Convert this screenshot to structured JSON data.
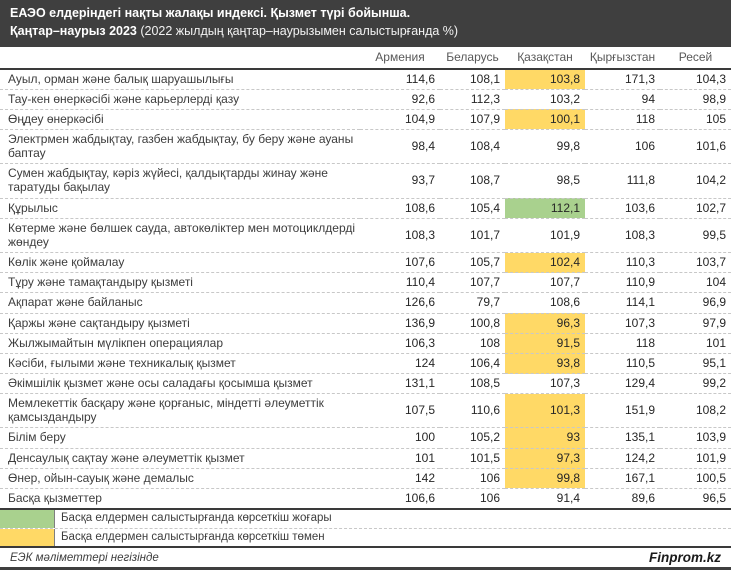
{
  "header": {
    "title_line1": "ЕАЭО елдеріндегі нақты жалақы индексі. Қызмет түрі бойынша.",
    "period_bold": "Қаңтар–наурыз 2023",
    "period_note": " (2022 жылдың қаңтар–наурызымен салыстырғанда %)"
  },
  "chart_data": {
    "type": "table",
    "columns": [
      "Армения",
      "Беларусь",
      "Қазақстан",
      "Қырғызстан",
      "Ресей"
    ],
    "highlight_column_index": 2,
    "rows": [
      {
        "label": "Ауыл, орман және балық шаруашылығы",
        "values": [
          "114,6",
          "108,1",
          "103,8",
          "171,3",
          "104,3"
        ],
        "highlight": "low"
      },
      {
        "label": "Тау-кен өнеркәсібі және карьерлерді қазу",
        "values": [
          "92,6",
          "112,3",
          "103,2",
          "94",
          "98,9"
        ],
        "highlight": null
      },
      {
        "label": "Өңдеу өнеркәсібі",
        "values": [
          "104,9",
          "107,9",
          "100,1",
          "118",
          "105"
        ],
        "highlight": "low"
      },
      {
        "label": "Электрмен жабдықтау, газбен жабдықтау, бу беру және ауаны баптау",
        "values": [
          "98,4",
          "108,4",
          "99,8",
          "106",
          "101,6"
        ],
        "highlight": null
      },
      {
        "label": "Сумен жабдықтау, кәріз жүйесі, қалдықтарды жинау және таратуды бақылау",
        "values": [
          "93,7",
          "108,7",
          "98,5",
          "111,8",
          "104,2"
        ],
        "highlight": null
      },
      {
        "label": "Құрылыс",
        "values": [
          "108,6",
          "105,4",
          "112,1",
          "103,6",
          "102,7"
        ],
        "highlight": "high"
      },
      {
        "label": "Көтерме және бөлшек сауда, автокөліктер мен мотоциклдерді жөндеу",
        "values": [
          "108,3",
          "101,7",
          "101,9",
          "108,3",
          "99,5"
        ],
        "highlight": null
      },
      {
        "label": "Көлік және қоймалау",
        "values": [
          "107,6",
          "105,7",
          "102,4",
          "110,3",
          "103,7"
        ],
        "highlight": "low"
      },
      {
        "label": "Тұру және тамақтандыру қызметі",
        "values": [
          "110,4",
          "107,7",
          "107,7",
          "110,9",
          "104"
        ],
        "highlight": null
      },
      {
        "label": "Ақпарат және байланыс",
        "values": [
          "126,6",
          "79,7",
          "108,6",
          "114,1",
          "96,9"
        ],
        "highlight": null
      },
      {
        "label": "Қаржы және сақтандыру қызметі",
        "values": [
          "136,9",
          "100,8",
          "96,3",
          "107,3",
          "97,9"
        ],
        "highlight": "low"
      },
      {
        "label": "Жылжымайтын мүлікпен операциялар",
        "values": [
          "106,3",
          "108",
          "91,5",
          "118",
          "101"
        ],
        "highlight": "low"
      },
      {
        "label": "Кәсіби, ғылыми және техникалық қызмет",
        "values": [
          "124",
          "106,4",
          "93,8",
          "110,5",
          "95,1"
        ],
        "highlight": "low"
      },
      {
        "label": "Әкімшілік қызмет және осы саладағы қосымша қызмет",
        "values": [
          "131,1",
          "108,5",
          "107,3",
          "129,4",
          "99,2"
        ],
        "highlight": null
      },
      {
        "label": "Мемлекеттік басқару және қорғаныс, міндетті әлеуметтік қамсыздандыру",
        "values": [
          "107,5",
          "110,6",
          "101,3",
          "151,9",
          "108,2"
        ],
        "highlight": "low"
      },
      {
        "label": "Білім беру",
        "values": [
          "100",
          "105,2",
          "93",
          "135,1",
          "103,9"
        ],
        "highlight": "low"
      },
      {
        "label": "Денсаулық сақтау және әлеуметтік қызмет",
        "values": [
          "101",
          "101,5",
          "97,3",
          "124,2",
          "101,9"
        ],
        "highlight": "low"
      },
      {
        "label": "Өнер, ойын-сауық және демалыс",
        "values": [
          "142",
          "106",
          "99,8",
          "167,1",
          "100,5"
        ],
        "highlight": "low"
      },
      {
        "label": "Басқа қызметтер",
        "values": [
          "106,6",
          "106",
          "91,4",
          "89,6",
          "96,5"
        ],
        "highlight": null
      }
    ]
  },
  "legend": [
    {
      "type": "high",
      "color": "#a9d18e",
      "label": "Басқа елдермен салыстырғанда көрсеткіш жоғары"
    },
    {
      "type": "low",
      "color": "#ffd966",
      "label": "Басқа елдермен салыстырғанда көрсеткіш төмен"
    }
  ],
  "footer": {
    "source": "ЕЭК мәліметтері негізінде",
    "brand": "Finprom.kz"
  },
  "colors": {
    "title_bg": "#3f3f3f",
    "highlight_high": "#a9d18e",
    "highlight_low": "#ffd966"
  }
}
